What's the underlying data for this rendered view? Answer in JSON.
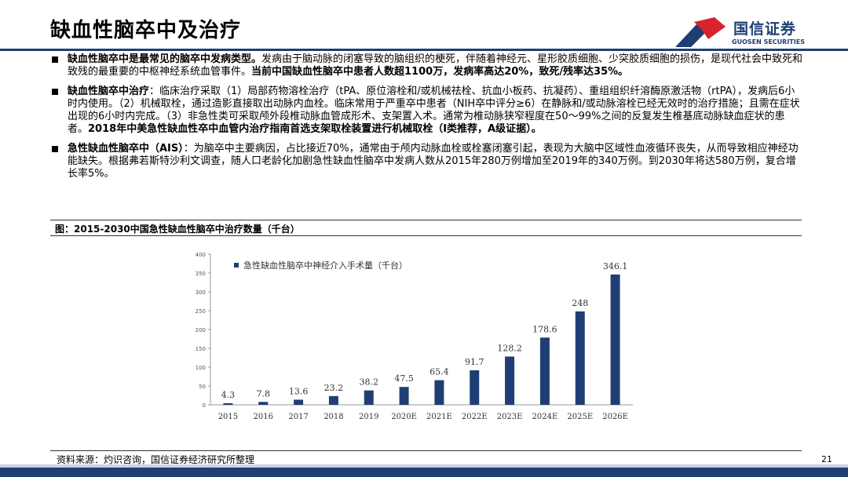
{
  "header": {
    "title": "缺血性脑卒中及治疗",
    "logo_cn": "国信证券",
    "logo_en": "GUOSEN SECURITIES",
    "colors": {
      "brand_blue": "#1f3e73",
      "brand_red": "#d7232f"
    }
  },
  "bullets": [
    {
      "segments": [
        {
          "text": "缺血性脑卒中是最常见的脑卒中发病类型。",
          "bold": true
        },
        {
          "text": "发病由于脑动脉的闭塞导致的脑组织的梗死，伴随着神经元、星形胶质细胞、少突胶质细胞的损伤，是现代社会中致死和致残的最重要的中枢神经系统血管事件。",
          "bold": false
        },
        {
          "text": "当前中国缺血性脑卒中患者人数超1100万，发病率高达20%，致死/残率达35%。",
          "bold": true
        }
      ]
    },
    {
      "segments": [
        {
          "text": "缺血性脑卒中治疗",
          "bold": true
        },
        {
          "text": "：临床治疗采取（1）局部药物溶栓治疗（tPA、原位溶栓和/或机械祛栓、抗血小板药、抗凝药）、重组组织纤溶酶原激活物（rtPA），发病后6小时内使用。（2）机械取栓，通过造影直接取出动脉内血栓。临床常用于严重卒中患者（NIH卒中评分≥6）在静脉和/或动脉溶栓已经无效时的治疗措施；且需在症状出现的6小时内完成。（3）非急性类可采取颅外段椎动脉血管成形术、支架置入术。通常为椎动脉狭窄程度在50～99%之间的反复发生椎基底动脉缺血症状的患者。",
          "bold": false
        },
        {
          "text": "2018年中美急性缺血性卒中血管内治疗指南首选支架取栓装置进行机械取栓（I类推荐，A级证据）。",
          "bold": true
        }
      ]
    },
    {
      "segments": [
        {
          "text": "急性缺血性脑卒中（AIS）",
          "bold": true
        },
        {
          "text": "：为脑卒中主要病因，占比接近70%，通常由于颅内动脉血栓或栓塞闭塞引起，表现为大脑中区域性血液循环丧失，从而导致相应神经功能缺失。根据弗若斯特沙利文调查，随人口老龄化加剧急性缺血性脑卒中发病人数从2015年280万例增加至2019年的340万例。到2030年将达580万例，复合增长率5%。",
          "bold": false
        }
      ]
    }
  ],
  "figure_caption": "图：2015-2030中国急性缺血性脑卒中治疗数量（千台）",
  "chart_data": {
    "type": "bar",
    "title": "",
    "legend": {
      "label": "急性缺血性脑卒中神经介入手术量（千台）",
      "position": "top-left"
    },
    "categories": [
      "2015",
      "2016",
      "2017",
      "2018",
      "2019",
      "2020E",
      "2021E",
      "2022E",
      "2023E",
      "2024E",
      "2025E",
      "2026E"
    ],
    "values": [
      4.3,
      7.8,
      13.6,
      23.2,
      38.2,
      47.5,
      65.4,
      91.7,
      128.2,
      178.6,
      248,
      346.1
    ],
    "value_labels": [
      "4.3",
      "7.8",
      "13.6",
      "23.2",
      "38.2",
      "47.5",
      "65.4",
      "91.7",
      "128.2",
      "178.6",
      "248",
      "346.1"
    ],
    "ylim": [
      0,
      400
    ],
    "yticks": [
      0,
      50,
      100,
      150,
      200,
      250,
      300,
      350,
      400
    ],
    "grid": false,
    "bar_color": "#1f3e73"
  },
  "footer": {
    "source": "资料来源：灼识咨询，国信证券经济研究所整理",
    "page_number": "21"
  }
}
